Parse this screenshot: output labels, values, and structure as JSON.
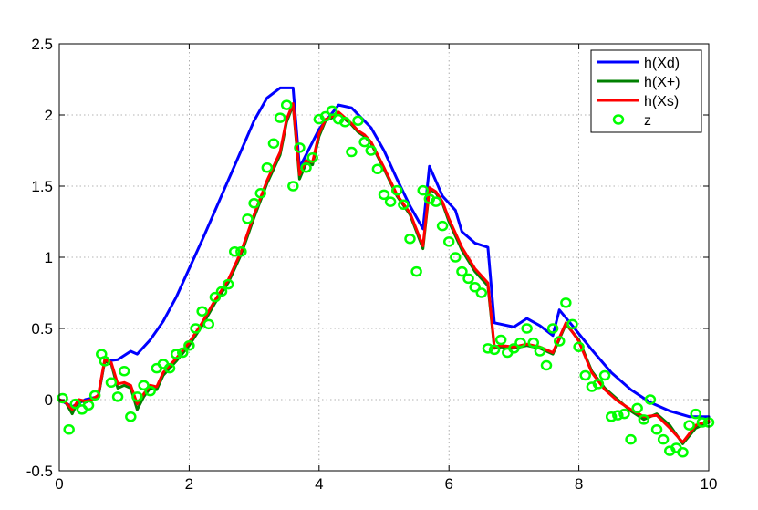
{
  "chart_data": {
    "type": "line",
    "xlim": [
      0,
      10
    ],
    "ylim": [
      -0.5,
      2.5
    ],
    "xticks": [
      0,
      2,
      4,
      6,
      8,
      10
    ],
    "yticks": [
      -0.5,
      0,
      0.5,
      1,
      1.5,
      2,
      2.5
    ],
    "xtick_labels": [
      "0",
      "2",
      "4",
      "6",
      "8",
      "10"
    ],
    "ytick_labels": [
      "-0.5",
      "0",
      "0.5",
      "1",
      "1.5",
      "2",
      "2.5"
    ],
    "grid": true,
    "legend_position": "top-right",
    "series": [
      {
        "name": "h(Xd)",
        "kind": "line",
        "color": "#0000ff",
        "x": [
          0,
          0.2,
          0.4,
          0.6,
          0.7,
          0.9,
          1.1,
          1.2,
          1.4,
          1.6,
          1.8,
          2.0,
          2.2,
          2.4,
          2.6,
          2.8,
          3.0,
          3.2,
          3.4,
          3.6,
          3.7,
          4.0,
          4.3,
          4.5,
          4.8,
          5.0,
          5.2,
          5.4,
          5.6,
          5.7,
          5.9,
          6.1,
          6.2,
          6.4,
          6.6,
          6.7,
          7.0,
          7.2,
          7.4,
          7.6,
          7.7,
          7.9,
          8.2,
          8.5,
          8.8,
          9.1,
          9.4,
          9.7,
          10.0
        ],
        "y": [
          0.0,
          -0.05,
          0.0,
          0.02,
          0.27,
          0.28,
          0.34,
          0.32,
          0.42,
          0.55,
          0.72,
          0.92,
          1.12,
          1.33,
          1.54,
          1.75,
          1.96,
          2.12,
          2.19,
          2.19,
          1.63,
          1.9,
          2.07,
          2.05,
          1.91,
          1.75,
          1.55,
          1.36,
          1.2,
          1.64,
          1.43,
          1.33,
          1.18,
          1.1,
          1.07,
          0.54,
          0.51,
          0.57,
          0.52,
          0.45,
          0.63,
          0.52,
          0.35,
          0.19,
          0.07,
          -0.02,
          -0.08,
          -0.12,
          -0.12
        ]
      },
      {
        "name": "h(X+)",
        "kind": "line",
        "color": "#008000",
        "x": [
          0,
          0.1,
          0.2,
          0.3,
          0.4,
          0.5,
          0.6,
          0.7,
          0.8,
          0.9,
          1.0,
          1.1,
          1.2,
          1.3,
          1.4,
          1.5,
          1.6,
          1.8,
          2.0,
          2.2,
          2.4,
          2.6,
          2.8,
          3.0,
          3.2,
          3.4,
          3.5,
          3.6,
          3.7,
          3.8,
          3.9,
          4.0,
          4.1,
          4.2,
          4.3,
          4.4,
          4.5,
          4.6,
          4.7,
          4.8,
          5.0,
          5.2,
          5.4,
          5.6,
          5.7,
          5.8,
          5.9,
          6.0,
          6.2,
          6.4,
          6.6,
          6.7,
          6.8,
          7.0,
          7.2,
          7.4,
          7.6,
          7.8,
          8.0,
          8.2,
          8.4,
          8.6,
          8.8,
          9.0,
          9.2,
          9.4,
          9.6,
          9.8,
          10.0
        ],
        "y": [
          0.0,
          -0.02,
          -0.1,
          0.0,
          -0.02,
          0.0,
          0.02,
          0.27,
          0.25,
          0.08,
          0.1,
          0.08,
          -0.07,
          0.02,
          0.08,
          0.07,
          0.17,
          0.27,
          0.38,
          0.52,
          0.68,
          0.82,
          1.02,
          1.28,
          1.52,
          1.72,
          1.95,
          2.07,
          1.55,
          1.66,
          1.65,
          1.85,
          1.96,
          1.98,
          2.01,
          1.97,
          1.93,
          1.88,
          1.85,
          1.8,
          1.62,
          1.43,
          1.3,
          1.06,
          1.48,
          1.45,
          1.38,
          1.25,
          1.05,
          0.9,
          0.8,
          0.36,
          0.37,
          0.36,
          0.38,
          0.36,
          0.32,
          0.53,
          0.42,
          0.2,
          0.08,
          0.0,
          -0.08,
          -0.14,
          -0.1,
          -0.18,
          -0.31,
          -0.2,
          -0.16
        ]
      },
      {
        "name": "h(Xs)",
        "kind": "line",
        "color": "#ff0000",
        "x": [
          0,
          0.1,
          0.2,
          0.3,
          0.4,
          0.5,
          0.6,
          0.7,
          0.8,
          0.9,
          1.0,
          1.1,
          1.2,
          1.3,
          1.4,
          1.5,
          1.6,
          1.8,
          2.0,
          2.2,
          2.4,
          2.6,
          2.8,
          3.0,
          3.2,
          3.4,
          3.5,
          3.6,
          3.7,
          3.8,
          3.9,
          4.0,
          4.1,
          4.2,
          4.3,
          4.4,
          4.5,
          4.6,
          4.7,
          4.8,
          5.0,
          5.2,
          5.4,
          5.6,
          5.7,
          5.8,
          5.9,
          6.0,
          6.2,
          6.4,
          6.6,
          6.7,
          6.8,
          7.0,
          7.2,
          7.4,
          7.6,
          7.8,
          8.0,
          8.2,
          8.4,
          8.6,
          8.8,
          9.0,
          9.2,
          9.4,
          9.6,
          9.8,
          10.0
        ],
        "y": [
          0.0,
          -0.02,
          -0.07,
          0.0,
          -0.01,
          0.0,
          0.03,
          0.28,
          0.26,
          0.11,
          0.12,
          0.1,
          -0.03,
          0.04,
          0.1,
          0.09,
          0.19,
          0.29,
          0.4,
          0.54,
          0.7,
          0.84,
          1.04,
          1.3,
          1.54,
          1.74,
          1.97,
          2.08,
          1.58,
          1.68,
          1.67,
          1.87,
          1.97,
          1.99,
          2.02,
          1.98,
          1.94,
          1.89,
          1.86,
          1.81,
          1.63,
          1.44,
          1.31,
          1.08,
          1.49,
          1.46,
          1.39,
          1.27,
          1.07,
          0.92,
          0.82,
          0.37,
          0.38,
          0.37,
          0.39,
          0.37,
          0.33,
          0.54,
          0.41,
          0.19,
          0.07,
          -0.01,
          -0.07,
          -0.12,
          -0.11,
          -0.2,
          -0.3,
          -0.18,
          -0.15
        ]
      },
      {
        "name": "z",
        "kind": "scatter",
        "color": "#00ff00",
        "x": [
          0.05,
          0.15,
          0.25,
          0.35,
          0.45,
          0.55,
          0.65,
          0.7,
          0.8,
          0.9,
          1.0,
          1.1,
          1.2,
          1.3,
          1.4,
          1.5,
          1.6,
          1.7,
          1.8,
          1.9,
          2.0,
          2.1,
          2.2,
          2.3,
          2.4,
          2.5,
          2.6,
          2.7,
          2.8,
          2.9,
          3.0,
          3.1,
          3.2,
          3.3,
          3.4,
          3.5,
          3.6,
          3.7,
          3.8,
          3.9,
          4.0,
          4.1,
          4.2,
          4.3,
          4.4,
          4.5,
          4.6,
          4.7,
          4.8,
          4.9,
          5.0,
          5.1,
          5.2,
          5.3,
          5.4,
          5.5,
          5.6,
          5.7,
          5.8,
          5.9,
          6.0,
          6.1,
          6.2,
          6.3,
          6.4,
          6.5,
          6.6,
          6.7,
          6.8,
          6.9,
          7.0,
          7.1,
          7.2,
          7.3,
          7.4,
          7.5,
          7.6,
          7.7,
          7.8,
          7.9,
          8.0,
          8.1,
          8.2,
          8.3,
          8.4,
          8.5,
          8.6,
          8.7,
          8.8,
          8.9,
          9.0,
          9.1,
          9.2,
          9.3,
          9.4,
          9.5,
          9.6,
          9.7,
          9.8,
          9.9,
          10.0
        ],
        "y": [
          0.01,
          -0.21,
          -0.03,
          -0.07,
          -0.04,
          0.03,
          0.32,
          0.27,
          0.12,
          0.02,
          0.2,
          -0.12,
          0.02,
          0.1,
          0.06,
          0.22,
          0.25,
          0.22,
          0.32,
          0.33,
          0.38,
          0.5,
          0.62,
          0.53,
          0.72,
          0.76,
          0.81,
          1.04,
          1.04,
          1.27,
          1.38,
          1.45,
          1.63,
          1.8,
          1.98,
          2.07,
          1.5,
          1.77,
          1.63,
          1.7,
          1.97,
          1.99,
          2.03,
          1.97,
          1.95,
          1.74,
          1.96,
          1.81,
          1.75,
          1.62,
          1.44,
          1.39,
          1.47,
          1.37,
          1.13,
          0.9,
          1.47,
          1.41,
          1.39,
          1.22,
          1.11,
          1.0,
          0.9,
          0.85,
          0.79,
          0.75,
          0.36,
          0.35,
          0.42,
          0.33,
          0.36,
          0.4,
          0.5,
          0.4,
          0.34,
          0.24,
          0.5,
          0.41,
          0.68,
          0.53,
          0.37,
          0.17,
          0.09,
          0.11,
          0.17,
          -0.12,
          -0.11,
          -0.1,
          -0.28,
          -0.06,
          -0.14,
          0.0,
          -0.21,
          -0.28,
          -0.36,
          -0.34,
          -0.37,
          -0.18,
          -0.1,
          -0.16,
          -0.16
        ]
      }
    ]
  }
}
